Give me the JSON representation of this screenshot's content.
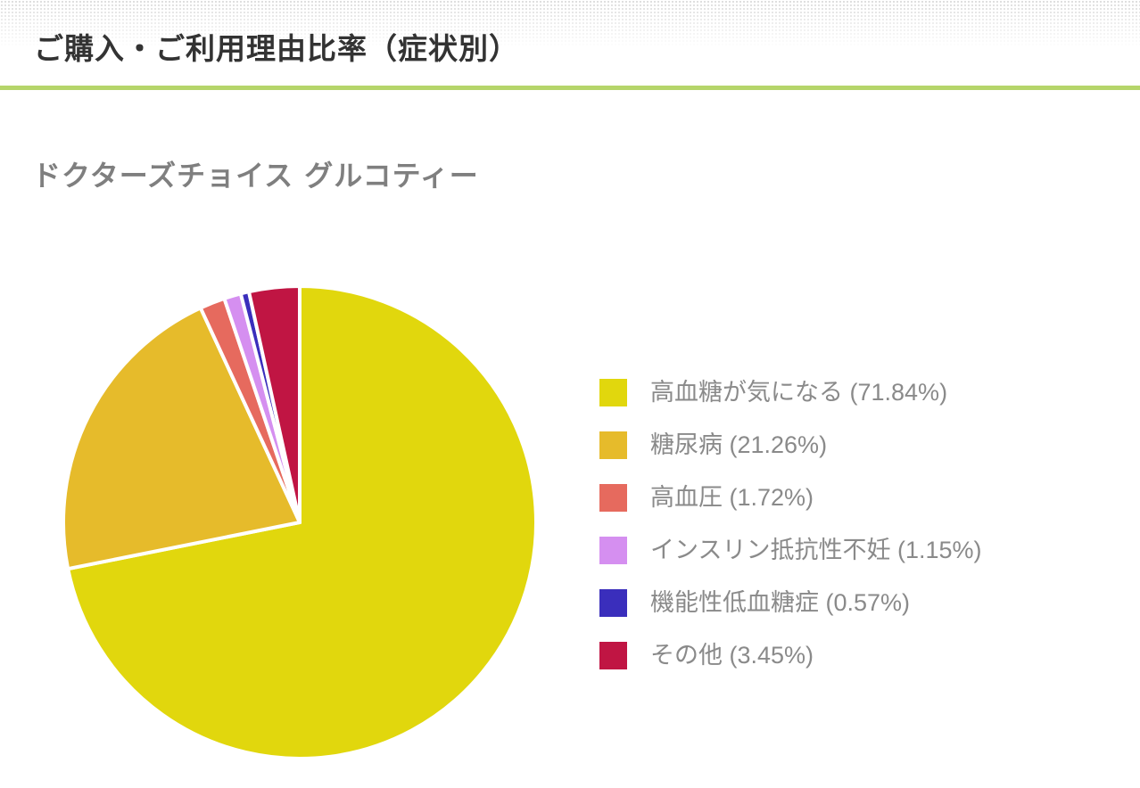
{
  "header": {
    "title": "ご購入・ご利用理由比率（症状別）",
    "accent_color": "#b5d56a"
  },
  "chart_data": {
    "type": "pie",
    "title": "ドクターズチョイス グルコティー",
    "start_angle": "12 o'clock, clockwise",
    "legend_position": "right",
    "categories": [
      "高血糖が気になる",
      "糖尿病",
      "高血圧",
      "インスリン抵抗性不妊",
      "機能性低血糖症",
      "その他"
    ],
    "values": [
      71.84,
      21.26,
      1.72,
      1.15,
      0.57,
      3.45
    ],
    "colors": [
      "#e1d70d",
      "#e6bb2b",
      "#e66a5e",
      "#d58ff0",
      "#3a2ebc",
      "#c01543"
    ],
    "legend_labels": [
      "高血糖が気になる (71.84%)",
      "糖尿病 (21.26%)",
      "高血圧 (1.72%)",
      "インスリン抵抗性不妊 (1.15%)",
      "機能性低血糖症 (0.57%)",
      "その他 (3.45%)"
    ]
  }
}
